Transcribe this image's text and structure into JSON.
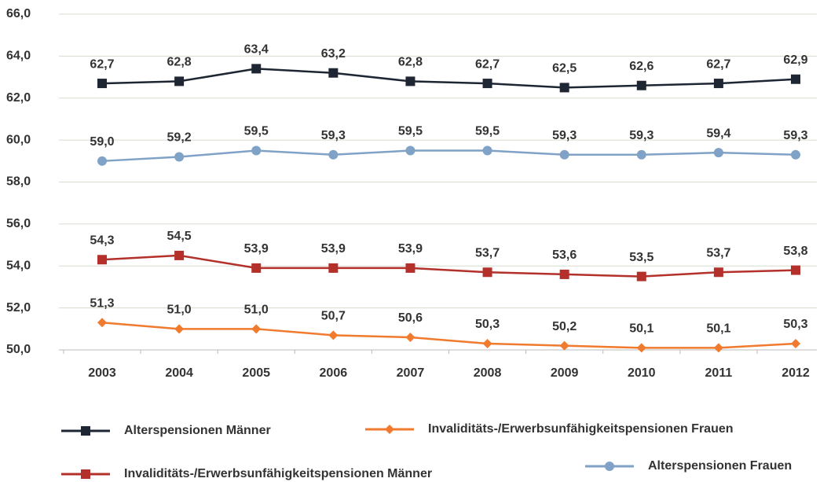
{
  "chart_data": {
    "type": "line",
    "categories": [
      "2003",
      "2004",
      "2005",
      "2006",
      "2007",
      "2008",
      "2009",
      "2010",
      "2011",
      "2012"
    ],
    "ylim": [
      50,
      66
    ],
    "yticks": [
      {
        "value": 50,
        "label": "50,0"
      },
      {
        "value": 52,
        "label": "52,0"
      },
      {
        "value": 54,
        "label": "54,0"
      },
      {
        "value": 56,
        "label": "56,0"
      },
      {
        "value": 58,
        "label": "58,0"
      },
      {
        "value": 60,
        "label": "60,0"
      },
      {
        "value": 62,
        "label": "62,0"
      },
      {
        "value": 64,
        "label": "64,0"
      },
      {
        "value": 66,
        "label": "66,0"
      }
    ],
    "grid": true,
    "series": [
      {
        "name": "Alterspensionen Männer",
        "color": "#1e2633",
        "marker": "square",
        "values": [
          62.7,
          62.8,
          63.4,
          63.2,
          62.8,
          62.7,
          62.5,
          62.6,
          62.7,
          62.9
        ],
        "value_labels": [
          "62,7",
          "62,8",
          "63,4",
          "63,2",
          "62,8",
          "62,7",
          "62,5",
          "62,6",
          "62,7",
          "62,9"
        ]
      },
      {
        "name": "Invaliditäts-/Erwerbsunfähigkeitspensionen Frauen",
        "color": "#f07a2e",
        "marker": "diamond",
        "values": [
          51.3,
          51.0,
          51.0,
          50.7,
          50.6,
          50.3,
          50.2,
          50.1,
          50.1,
          50.3
        ],
        "value_labels": [
          "51,3",
          "51,0",
          "51,0",
          "50,7",
          "50,6",
          "50,3",
          "50,2",
          "50,1",
          "50,1",
          "50,3"
        ]
      },
      {
        "name": "Invaliditäts-/Erwerbsunfähigkeitspensionen Männer",
        "color": "#b3302b",
        "marker": "square",
        "values": [
          54.3,
          54.5,
          53.9,
          53.9,
          53.9,
          53.7,
          53.6,
          53.5,
          53.7,
          53.8
        ],
        "value_labels": [
          "54,3",
          "54,5",
          "53,9",
          "53,9",
          "53,9",
          "53,7",
          "53,6",
          "53,5",
          "53,7",
          "53,8"
        ]
      },
      {
        "name": "Alterspensionen Frauen",
        "color": "#7fa2c6",
        "marker": "circle",
        "values": [
          59.0,
          59.2,
          59.5,
          59.3,
          59.5,
          59.5,
          59.3,
          59.3,
          59.4,
          59.3
        ],
        "value_labels": [
          "59,0",
          "59,2",
          "59,5",
          "59,3",
          "59,5",
          "59,5",
          "59,3",
          "59,3",
          "59,4",
          "59,3"
        ]
      }
    ]
  }
}
